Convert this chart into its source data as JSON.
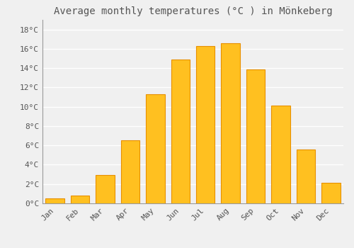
{
  "title": "Average monthly temperatures (°C ) in Mönkeberg",
  "months": [
    "Jan",
    "Feb",
    "Mar",
    "Apr",
    "May",
    "Jun",
    "Jul",
    "Aug",
    "Sep",
    "Oct",
    "Nov",
    "Dec"
  ],
  "values": [
    0.5,
    0.8,
    2.9,
    6.5,
    11.3,
    14.9,
    16.3,
    16.6,
    13.9,
    10.1,
    5.6,
    2.1
  ],
  "bar_color": "#FFC020",
  "bar_edge_color": "#E89000",
  "background_color": "#F0F0F0",
  "grid_color": "#FFFFFF",
  "text_color": "#555555",
  "ylim": [
    0,
    19
  ],
  "yticks": [
    0,
    2,
    4,
    6,
    8,
    10,
    12,
    14,
    16,
    18
  ],
  "title_fontsize": 10,
  "tick_fontsize": 8,
  "font_family": "monospace"
}
